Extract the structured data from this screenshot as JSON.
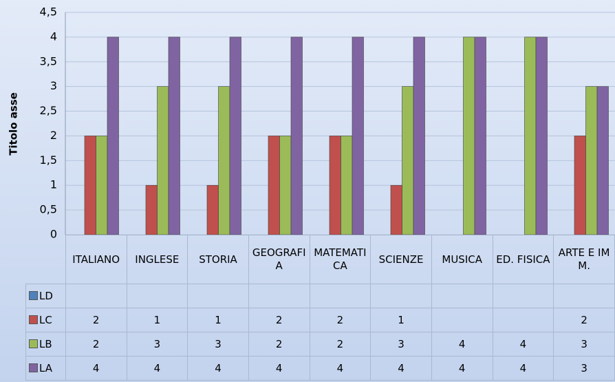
{
  "chart_data": {
    "type": "bar",
    "y_label": "Titolo asse",
    "categories": [
      "ITALIANO",
      "INGLESE",
      "STORIA",
      "GEOGRAFIA",
      "MATEMATICA",
      "SCIENZE",
      "MUSICA",
      "ED. FISICA",
      "ARTE E IMM."
    ],
    "series": [
      {
        "name": "LD",
        "color": "#4f81bd",
        "values": [
          null,
          null,
          null,
          null,
          null,
          null,
          null,
          null,
          null
        ]
      },
      {
        "name": "LC",
        "color": "#c0504d",
        "values": [
          2,
          1,
          1,
          2,
          2,
          1,
          null,
          null,
          2
        ]
      },
      {
        "name": "LB",
        "color": "#9bbb59",
        "values": [
          2,
          3,
          3,
          2,
          2,
          3,
          4,
          4,
          3
        ]
      },
      {
        "name": "LA",
        "color": "#8064a2",
        "values": [
          4,
          4,
          4,
          4,
          4,
          4,
          4,
          4,
          3
        ]
      }
    ],
    "ylim": [
      0,
      4.5
    ],
    "yticks": [
      0,
      {
        "value": 0.5,
        "label": "0,5"
      },
      1,
      {
        "value": 1.5,
        "label": "1,5"
      },
      2,
      {
        "value": 2.5,
        "label": "2,5"
      },
      3,
      {
        "value": 3.5,
        "label": "3,5"
      },
      4,
      {
        "value": 4.5,
        "label": "4,5"
      }
    ],
    "grid": true,
    "data_table": true
  }
}
